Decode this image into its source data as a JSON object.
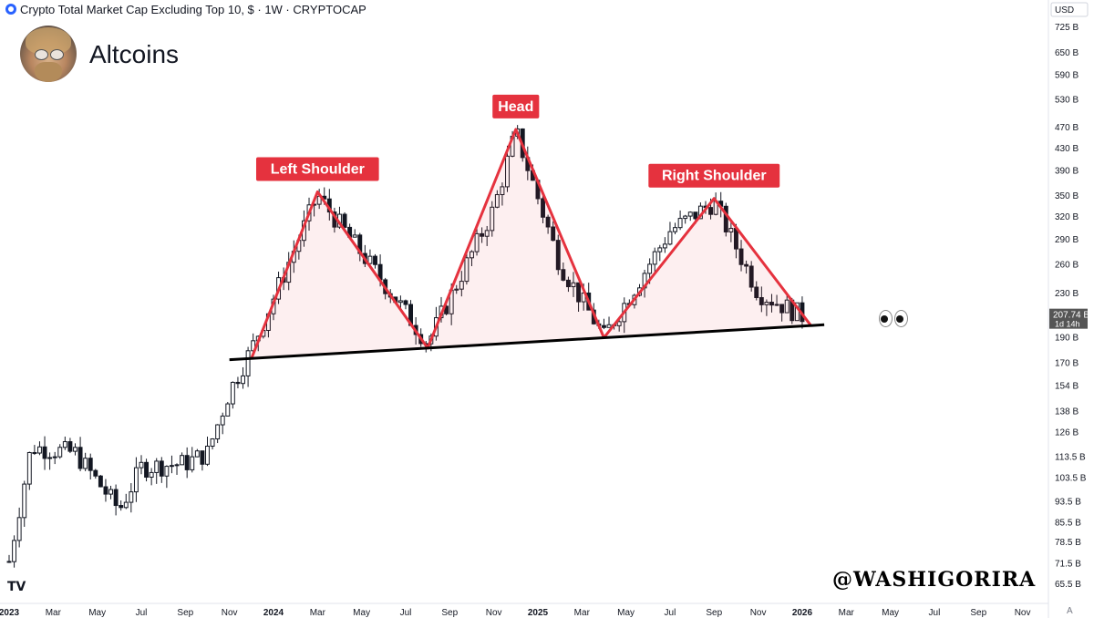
{
  "header": {
    "symbol_title": "Crypto Total Market Cap Excluding Top 10, $ · 1W · CRYPTOCAP",
    "icon": "cryptocap-icon"
  },
  "author": {
    "title": "Altcoins",
    "avatar": "avatar-icon"
  },
  "watermark": "@WASHIGORIRA",
  "logo": "tradingview-logo-icon",
  "emoji": "eyes-emoji",
  "colors": {
    "pattern_line": "#e5323e",
    "label_bg": "#e5323e",
    "neckline": "#000000",
    "candle": "#131722",
    "price_tag": "#555555"
  },
  "chart_data": {
    "type": "candlestick",
    "title": "Altcoins",
    "x_axis": [
      "2023",
      "Mar",
      "May",
      "Jul",
      "Sep",
      "Nov",
      "2024",
      "Mar",
      "May",
      "Jul",
      "Sep",
      "Nov",
      "2025",
      "Mar",
      "May",
      "Jul",
      "Sep",
      "Nov",
      "2026",
      "Mar",
      "May",
      "Jul",
      "Sep",
      "Nov"
    ],
    "y_axis": {
      "unit": "USD",
      "scale": "log",
      "ticks": [
        "725 B",
        "650 B",
        "590 B",
        "530 B",
        "470 B",
        "430 B",
        "390 B",
        "350 B",
        "320 B",
        "290 B",
        "260 B",
        "230 B",
        "190 B",
        "170 B",
        "154 B",
        "138 B",
        "126 B",
        "113.5 B",
        "103.5 B",
        "93.5 B",
        "85.5 B",
        "78.5 B",
        "71.5 B",
        "65.5 B"
      ]
    },
    "current_price": "207.74 B",
    "countdown": "1d 14h",
    "approx_closes": [
      {
        "date": "2023-01",
        "value": 72
      },
      {
        "date": "2023-02",
        "value": 118
      },
      {
        "date": "2023-04",
        "value": 115
      },
      {
        "date": "2023-06",
        "value": 90
      },
      {
        "date": "2023-07",
        "value": 108
      },
      {
        "date": "2023-09",
        "value": 110
      },
      {
        "date": "2023-10",
        "value": 115
      },
      {
        "date": "2023-11",
        "value": 150
      },
      {
        "date": "2023-12",
        "value": 180
      },
      {
        "date": "2024-03",
        "value": 350
      },
      {
        "date": "2024-06",
        "value": 240
      },
      {
        "date": "2024-08",
        "value": 185
      },
      {
        "date": "2024-11",
        "value": 330
      },
      {
        "date": "2024-12",
        "value": 460
      },
      {
        "date": "2025-02",
        "value": 260
      },
      {
        "date": "2025-04",
        "value": 190
      },
      {
        "date": "2025-07",
        "value": 300
      },
      {
        "date": "2025-09",
        "value": 340
      },
      {
        "date": "2025-11",
        "value": 230
      },
      {
        "date": "2026-01",
        "value": 208
      }
    ],
    "annotations": [
      {
        "label": "Left Shoulder",
        "date": "2024-03",
        "value": 355
      },
      {
        "label": "Head",
        "date": "2024-12",
        "value": 465
      },
      {
        "label": "Right Shoulder",
        "date": "2025-09",
        "value": 345
      }
    ],
    "neckline": {
      "from": {
        "date": "2023-11",
        "value": 172
      },
      "to": {
        "date": "2026-02",
        "value": 200
      }
    }
  }
}
